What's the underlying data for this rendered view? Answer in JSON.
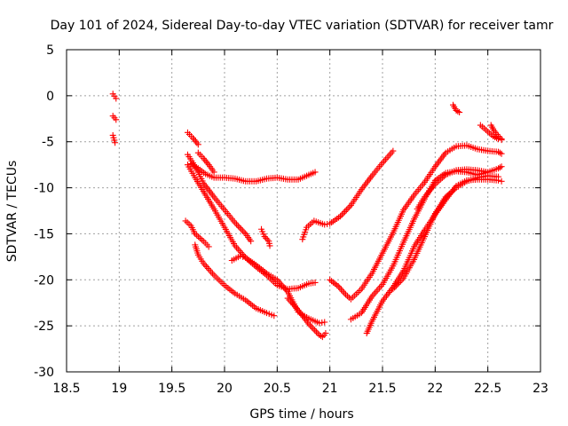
{
  "chart_data": {
    "type": "scatter",
    "title": "Day 101 of 2024, Sidereal Day-to-day VTEC variation (SDTVAR) for receiver tamr",
    "xlabel": "GPS time / hours",
    "ylabel": "SDTVAR / TECUs",
    "xlim": [
      18.5,
      23
    ],
    "ylim": [
      -30,
      5
    ],
    "xticks": [
      18.5,
      19,
      19.5,
      20,
      20.5,
      21,
      21.5,
      22,
      22.5,
      23
    ],
    "xtick_labels": [
      "18.5",
      "19",
      "19.5",
      "20",
      "20.5",
      "21",
      "21.5",
      "22",
      "22.5",
      "23"
    ],
    "yticks": [
      5,
      0,
      -5,
      -10,
      -15,
      -20,
      -25,
      -30
    ],
    "ytick_labels": [
      "5",
      "0",
      "-5",
      "-10",
      "-15",
      "-20",
      "-25",
      "-30"
    ],
    "grid": true,
    "marker": "plus",
    "color": "#ff0000",
    "tracks": [
      {
        "name": "arc-a1",
        "points": [
          [
            18.94,
            0.2
          ],
          [
            18.97,
            -0.3
          ]
        ]
      },
      {
        "name": "arc-a2",
        "points": [
          [
            18.94,
            -2.2
          ],
          [
            18.97,
            -2.6
          ]
        ]
      },
      {
        "name": "arc-a3",
        "points": [
          [
            18.94,
            -4.3
          ],
          [
            18.96,
            -5.1
          ]
        ]
      },
      {
        "name": "arc-b",
        "points": [
          [
            19.65,
            -4.0
          ],
          [
            19.7,
            -4.6
          ],
          [
            19.75,
            -5.3
          ]
        ]
      },
      {
        "name": "arc-c",
        "points": [
          [
            19.68,
            -7.4
          ],
          [
            19.75,
            -7.9
          ],
          [
            19.82,
            -8.5
          ],
          [
            19.9,
            -8.9
          ],
          [
            20.0,
            -8.9
          ],
          [
            20.1,
            -9.0
          ],
          [
            20.2,
            -9.3
          ],
          [
            20.3,
            -9.3
          ],
          [
            20.4,
            -9.0
          ],
          [
            20.5,
            -8.9
          ],
          [
            20.6,
            -9.1
          ],
          [
            20.7,
            -9.1
          ],
          [
            20.8,
            -8.6
          ],
          [
            20.86,
            -8.3
          ]
        ]
      },
      {
        "name": "arc-d",
        "points": [
          [
            19.65,
            -6.4
          ],
          [
            19.7,
            -7.3
          ],
          [
            19.75,
            -8.3
          ],
          [
            19.8,
            -9.5
          ],
          [
            19.9,
            -11.0
          ],
          [
            20.0,
            -12.4
          ],
          [
            20.1,
            -13.8
          ],
          [
            20.2,
            -15.0
          ],
          [
            20.25,
            -15.8
          ]
        ]
      },
      {
        "name": "arc-e",
        "points": [
          [
            19.75,
            -6.2
          ],
          [
            19.8,
            -6.8
          ],
          [
            19.85,
            -7.5
          ],
          [
            19.9,
            -8.3
          ]
        ]
      },
      {
        "name": "arc-f",
        "points": [
          [
            19.65,
            -7.5
          ],
          [
            19.72,
            -8.9
          ],
          [
            19.8,
            -10.4
          ],
          [
            19.9,
            -12.3
          ],
          [
            20.0,
            -14.3
          ],
          [
            20.1,
            -16.3
          ],
          [
            20.2,
            -17.6
          ],
          [
            20.3,
            -18.6
          ],
          [
            20.4,
            -19.5
          ],
          [
            20.5,
            -20.6
          ],
          [
            20.6,
            -21.0
          ],
          [
            20.7,
            -20.9
          ],
          [
            20.8,
            -20.4
          ],
          [
            20.86,
            -20.3
          ]
        ]
      },
      {
        "name": "arc-g",
        "points": [
          [
            19.63,
            -13.6
          ],
          [
            19.68,
            -14.1
          ],
          [
            19.72,
            -15.0
          ],
          [
            19.8,
            -15.8
          ],
          [
            19.85,
            -16.4
          ]
        ]
      },
      {
        "name": "arc-h",
        "points": [
          [
            19.72,
            -16.2
          ],
          [
            19.75,
            -17.3
          ],
          [
            19.8,
            -18.2
          ],
          [
            19.9,
            -19.5
          ],
          [
            20.0,
            -20.6
          ],
          [
            20.1,
            -21.5
          ],
          [
            20.2,
            -22.2
          ],
          [
            20.3,
            -23.1
          ],
          [
            20.4,
            -23.6
          ],
          [
            20.47,
            -23.9
          ]
        ]
      },
      {
        "name": "arc-i",
        "points": [
          [
            20.07,
            -17.9
          ],
          [
            20.15,
            -17.4
          ],
          [
            20.2,
            -17.6
          ],
          [
            20.3,
            -18.4
          ],
          [
            20.4,
            -19.3
          ],
          [
            20.5,
            -20.0
          ],
          [
            20.6,
            -21.3
          ],
          [
            20.7,
            -23.5
          ],
          [
            20.8,
            -24.2
          ],
          [
            20.9,
            -24.7
          ],
          [
            20.95,
            -24.6
          ]
        ]
      },
      {
        "name": "arc-j",
        "points": [
          [
            20.35,
            -14.5
          ],
          [
            20.38,
            -15.3
          ],
          [
            20.42,
            -15.8
          ],
          [
            20.43,
            -16.3
          ]
        ]
      },
      {
        "name": "arc-k",
        "points": [
          [
            20.6,
            -22.0
          ],
          [
            20.7,
            -23.3
          ],
          [
            20.8,
            -24.8
          ],
          [
            20.9,
            -26.0
          ],
          [
            20.93,
            -26.2
          ],
          [
            20.96,
            -25.8
          ]
        ]
      },
      {
        "name": "arc-l",
        "points": [
          [
            20.74,
            -15.6
          ],
          [
            20.78,
            -14.3
          ],
          [
            20.85,
            -13.6
          ],
          [
            20.95,
            -14.0
          ],
          [
            21.0,
            -13.9
          ],
          [
            21.1,
            -13.1
          ],
          [
            21.2,
            -11.9
          ],
          [
            21.3,
            -10.2
          ],
          [
            21.4,
            -8.7
          ],
          [
            21.5,
            -7.3
          ],
          [
            21.6,
            -6.0
          ]
        ]
      },
      {
        "name": "arc-m",
        "points": [
          [
            21.0,
            -20.0
          ],
          [
            21.08,
            -20.7
          ],
          [
            21.15,
            -21.6
          ],
          [
            21.2,
            -22.1
          ],
          [
            21.3,
            -21.0
          ],
          [
            21.4,
            -19.3
          ],
          [
            21.5,
            -17.1
          ],
          [
            21.6,
            -14.9
          ],
          [
            21.7,
            -12.4
          ],
          [
            21.8,
            -10.8
          ],
          [
            21.9,
            -9.4
          ],
          [
            22.0,
            -7.7
          ],
          [
            22.1,
            -6.2
          ],
          [
            22.2,
            -5.5
          ],
          [
            22.3,
            -5.4
          ],
          [
            22.4,
            -5.8
          ],
          [
            22.5,
            -6.0
          ],
          [
            22.6,
            -6.1
          ],
          [
            22.63,
            -6.3
          ]
        ]
      },
      {
        "name": "arc-n",
        "points": [
          [
            21.2,
            -24.3
          ],
          [
            21.3,
            -23.6
          ],
          [
            21.4,
            -21.8
          ],
          [
            21.5,
            -20.5
          ],
          [
            21.6,
            -18.5
          ],
          [
            21.7,
            -15.9
          ],
          [
            21.8,
            -13.4
          ],
          [
            21.9,
            -11.2
          ],
          [
            22.0,
            -9.2
          ],
          [
            22.1,
            -8.4
          ],
          [
            22.2,
            -8.2
          ],
          [
            22.3,
            -8.3
          ],
          [
            22.4,
            -8.6
          ],
          [
            22.5,
            -8.3
          ],
          [
            22.6,
            -7.9
          ],
          [
            22.63,
            -7.7
          ]
        ]
      },
      {
        "name": "arc-o",
        "points": [
          [
            21.35,
            -25.8
          ],
          [
            21.4,
            -24.5
          ],
          [
            21.5,
            -22.3
          ],
          [
            21.6,
            -20.8
          ],
          [
            21.7,
            -19.0
          ],
          [
            21.8,
            -16.4
          ],
          [
            21.9,
            -14.6
          ],
          [
            22.0,
            -12.9
          ],
          [
            22.1,
            -11.3
          ],
          [
            22.2,
            -9.8
          ],
          [
            22.3,
            -9.2
          ],
          [
            22.4,
            -9.1
          ],
          [
            22.5,
            -9.1
          ],
          [
            22.6,
            -9.2
          ],
          [
            22.63,
            -9.3
          ]
        ]
      },
      {
        "name": "arc-p",
        "points": [
          [
            21.6,
            -21.0
          ],
          [
            21.7,
            -19.8
          ],
          [
            21.8,
            -17.8
          ],
          [
            21.9,
            -15.3
          ],
          [
            22.0,
            -12.8
          ],
          [
            22.1,
            -11.0
          ],
          [
            22.2,
            -10.0
          ],
          [
            22.3,
            -9.3
          ],
          [
            22.4,
            -8.9
          ],
          [
            22.5,
            -8.7
          ],
          [
            22.6,
            -8.8
          ]
        ]
      },
      {
        "name": "arc-q",
        "points": [
          [
            21.83,
            -12.3
          ],
          [
            21.9,
            -11.0
          ],
          [
            22.0,
            -9.6
          ],
          [
            22.1,
            -8.6
          ],
          [
            22.2,
            -8.1
          ],
          [
            22.3,
            -8.0
          ],
          [
            22.4,
            -8.1
          ],
          [
            22.5,
            -8.3
          ]
        ]
      },
      {
        "name": "arc-r",
        "points": [
          [
            22.17,
            -1.0
          ],
          [
            22.2,
            -1.6
          ],
          [
            22.23,
            -1.8
          ]
        ]
      },
      {
        "name": "arc-s",
        "points": [
          [
            22.43,
            -3.2
          ],
          [
            22.5,
            -3.9
          ],
          [
            22.55,
            -4.4
          ],
          [
            22.6,
            -4.7
          ],
          [
            22.63,
            -4.8
          ]
        ]
      },
      {
        "name": "arc-t",
        "points": [
          [
            22.53,
            -3.2
          ],
          [
            22.56,
            -3.8
          ],
          [
            22.6,
            -4.4
          ],
          [
            22.63,
            -4.7
          ]
        ]
      }
    ]
  }
}
